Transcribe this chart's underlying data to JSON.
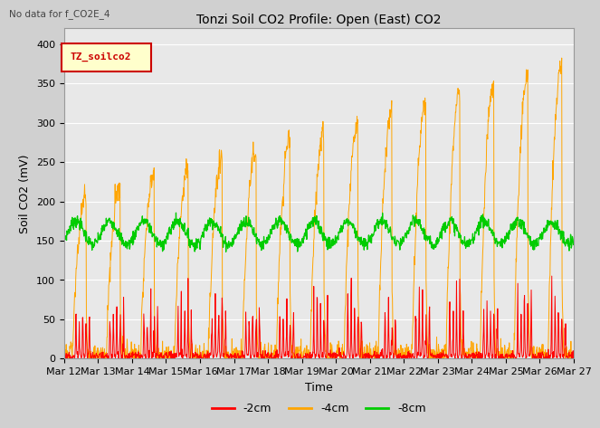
{
  "title": "Tonzi Soil CO2 Profile: Open (East) CO2",
  "no_data_text": "No data for f_CO2E_4",
  "ylabel": "Soil CO2 (mV)",
  "xlabel": "Time",
  "legend_label": "TZ_soilco2",
  "series_labels": [
    "-2cm",
    "-4cm",
    "-8cm"
  ],
  "series_colors": [
    "#ff0000",
    "#ffa500",
    "#00cc00"
  ],
  "ylim": [
    0,
    420
  ],
  "xlim": [
    0,
    360
  ],
  "n_points": 1440,
  "tick_positions": [
    0,
    24,
    48,
    72,
    96,
    120,
    144,
    168,
    192,
    216,
    240,
    264,
    288,
    312,
    336,
    360
  ],
  "tick_labels": [
    "Mar 12",
    "Mar 13",
    "Mar 14",
    "Mar 15",
    "Mar 16",
    "Mar 17",
    "Mar 18",
    "Mar 19",
    "Mar 20",
    "Mar 21",
    "Mar 22",
    "Mar 23",
    "Mar 24",
    "Mar 25",
    "Mar 26",
    "Mar 27"
  ],
  "plot_bg": "#e8e8e8",
  "fig_bg": "#d0d0d0"
}
